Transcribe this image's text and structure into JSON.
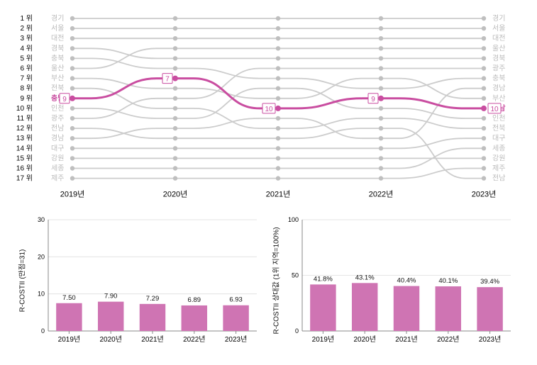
{
  "bump": {
    "years": [
      "2019년",
      "2020년",
      "2021년",
      "2022년",
      "2023년"
    ],
    "rank_labels": [
      "1 위",
      "2 위",
      "3 위",
      "4 위",
      "5 위",
      "6 위",
      "7 위",
      "8 위",
      "9 위",
      "10 위",
      "11 위",
      "12 위",
      "13 위",
      "14 위",
      "15 위",
      "16 위",
      "17 위"
    ],
    "n_ranks": 17,
    "highlight_name": "충남",
    "highlight_color": "#c94da0",
    "line_color": "#cccccc",
    "dot_color": "#bfbfbf",
    "region_label_color": "#bbbbbb",
    "left_regions": [
      "경기",
      "서울",
      "대전",
      "경북",
      "충북",
      "울산",
      "부산",
      "전북",
      "충남",
      "인천",
      "광주",
      "전남",
      "경남",
      "대구",
      "강원",
      "세종",
      "제주"
    ],
    "right_regions": [
      "경기",
      "서울",
      "대전",
      "울산",
      "경북",
      "광주",
      "충북",
      "경남",
      "부산",
      "충남",
      "인천",
      "전북",
      "대구",
      "세종",
      "강원",
      "제주",
      "전남"
    ],
    "series": [
      {
        "name": "경기",
        "ranks": [
          1,
          1,
          1,
          1,
          1
        ]
      },
      {
        "name": "서울",
        "ranks": [
          2,
          2,
          2,
          2,
          2
        ]
      },
      {
        "name": "대전",
        "ranks": [
          3,
          3,
          3,
          3,
          3
        ]
      },
      {
        "name": "경북",
        "ranks": [
          4,
          5,
          5,
          5,
          5
        ]
      },
      {
        "name": "충북",
        "ranks": [
          5,
          6,
          7,
          8,
          7
        ]
      },
      {
        "name": "울산",
        "ranks": [
          6,
          4,
          4,
          4,
          4
        ]
      },
      {
        "name": "부산",
        "ranks": [
          7,
          8,
          9,
          7,
          9
        ]
      },
      {
        "name": "전북",
        "ranks": [
          8,
          10,
          12,
          11,
          12
        ]
      },
      {
        "name": "충남",
        "ranks": [
          9,
          7,
          10,
          9,
          10
        ]
      },
      {
        "name": "인천",
        "ranks": [
          10,
          11,
          8,
          10,
          11
        ]
      },
      {
        "name": "광주",
        "ranks": [
          11,
          9,
          6,
          6,
          6
        ]
      },
      {
        "name": "전남",
        "ranks": [
          12,
          13,
          13,
          12,
          17
        ]
      },
      {
        "name": "경남",
        "ranks": [
          13,
          12,
          11,
          13,
          8
        ]
      },
      {
        "name": "대구",
        "ranks": [
          14,
          14,
          14,
          14,
          13
        ]
      },
      {
        "name": "강원",
        "ranks": [
          15,
          15,
          15,
          15,
          15
        ]
      },
      {
        "name": "세종",
        "ranks": [
          16,
          16,
          16,
          16,
          14
        ]
      },
      {
        "name": "제주",
        "ranks": [
          17,
          17,
          17,
          17,
          16
        ]
      }
    ],
    "xlabel_fontsize": 11,
    "rank_fontsize": 10
  },
  "bar_left": {
    "ylabel": "R-COSTII (만점=31)",
    "ymax": 30,
    "ytick_step": 10,
    "years": [
      "2019년",
      "2020년",
      "2021년",
      "2022년",
      "2023년"
    ],
    "values": [
      7.5,
      7.9,
      7.29,
      6.89,
      6.93
    ],
    "value_labels": [
      "7.50",
      "7.90",
      "7.29",
      "6.89",
      "6.93"
    ],
    "bar_color": "#cf74b3",
    "bar_width": 0.62,
    "axis_color": "#888888",
    "grid_color": "#dddddd"
  },
  "bar_right": {
    "ylabel": "R-COSTII 상대값 (1위 지역=100%)",
    "ymax": 100,
    "ytick_step": 50,
    "years": [
      "2019년",
      "2020년",
      "2021년",
      "2022년",
      "2023년"
    ],
    "values": [
      41.8,
      43.1,
      40.4,
      40.1,
      39.4
    ],
    "value_labels": [
      "41.8%",
      "43.1%",
      "40.4%",
      "40.1%",
      "39.4%"
    ],
    "bar_color": "#cf74b3",
    "bar_width": 0.62,
    "axis_color": "#888888",
    "grid_color": "#dddddd"
  }
}
